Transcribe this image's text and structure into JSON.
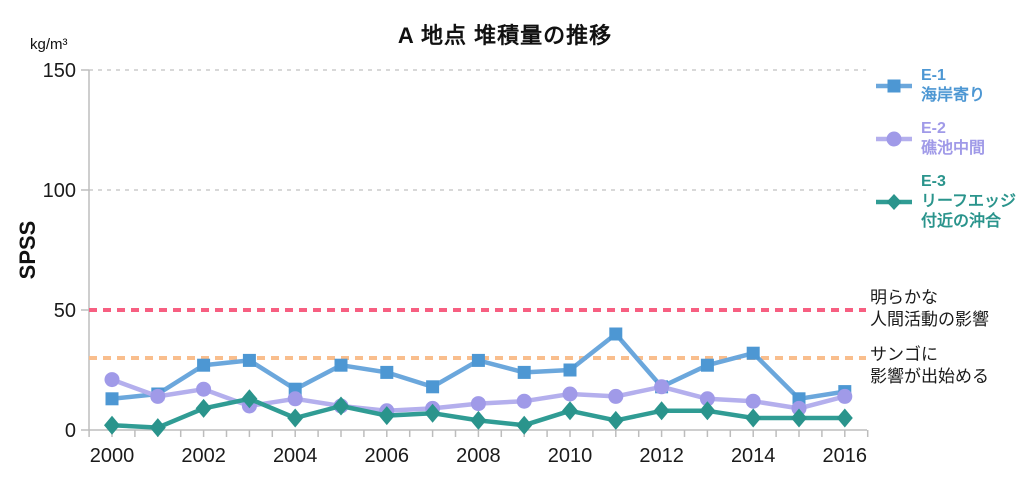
{
  "chart_data": {
    "type": "line",
    "title": "A 地点  堆積量の推移",
    "unit_label": "kg/m³",
    "ylabel": "SPSS",
    "ylim": [
      0,
      150
    ],
    "yticks": [
      0,
      50,
      100,
      150
    ],
    "grid": "horizontal dashed gridlines at 100 and 150",
    "legend_position": "right",
    "x": [
      2000,
      2001,
      2002,
      2003,
      2004,
      2005,
      2006,
      2007,
      2008,
      2009,
      2010,
      2011,
      2012,
      2013,
      2014,
      2015,
      2016
    ],
    "xtick_label_years": [
      2000,
      2002,
      2004,
      2006,
      2008,
      2010,
      2012,
      2014,
      2016
    ],
    "series": [
      {
        "name": "E-1",
        "desc_lines": [
          "海岸寄り"
        ],
        "marker": "square",
        "line_color": "#6BA7DC",
        "marker_color": "#4D97D3",
        "values": [
          13,
          15,
          27,
          29,
          17,
          27,
          24,
          18,
          29,
          24,
          25,
          40,
          18,
          27,
          32,
          13,
          16
        ]
      },
      {
        "name": "E-2",
        "desc_lines": [
          "礁池中間"
        ],
        "marker": "circle",
        "line_color": "#B4AFED",
        "marker_color": "#A09AE8",
        "values": [
          21,
          14,
          17,
          10,
          13,
          10,
          8,
          9,
          11,
          12,
          15,
          14,
          18,
          13,
          12,
          9,
          14
        ]
      },
      {
        "name": "E-3",
        "desc_lines": [
          "リーフエッジ",
          "付近の沖合"
        ],
        "marker": "diamond",
        "line_color": "#309C94",
        "marker_color": "#2A948C",
        "values": [
          2,
          1,
          9,
          13,
          5,
          10,
          6,
          7,
          4,
          2,
          8,
          4,
          8,
          8,
          5,
          5,
          5
        ]
      }
    ],
    "thresholds": [
      {
        "value": 50,
        "color": "#F75F81",
        "label_lines": [
          "明らかな",
          "人間活動の影響"
        ]
      },
      {
        "value": 30,
        "color": "#F9BE8D",
        "label_lines": [
          "サンゴに",
          "影響が出始める"
        ]
      }
    ]
  }
}
